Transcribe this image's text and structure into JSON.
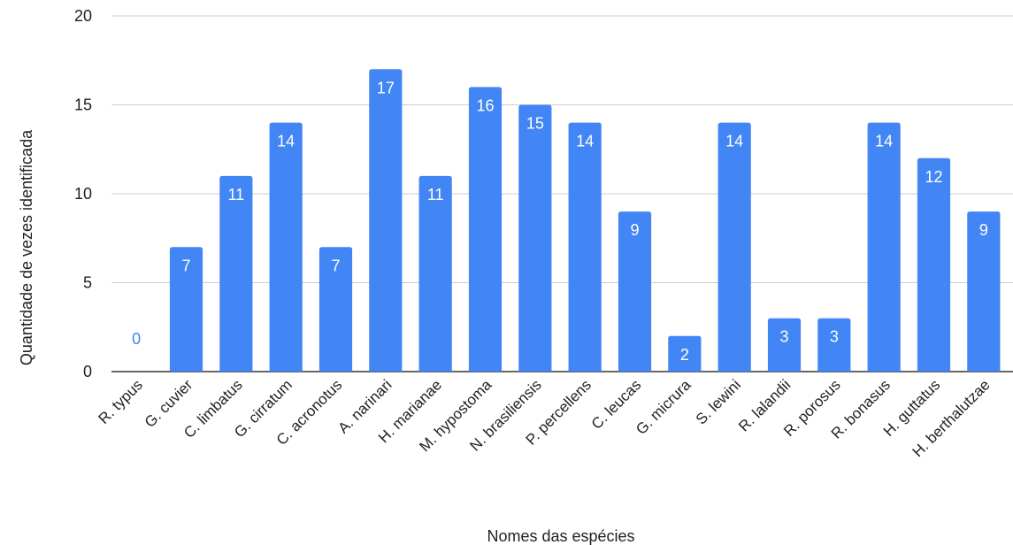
{
  "chart_data": {
    "type": "bar",
    "title": "",
    "xlabel": "Nomes das espécies",
    "ylabel": "Quantidade de vezes identificada",
    "ylim": [
      0,
      20
    ],
    "yticks": [
      0,
      5,
      10,
      15,
      20
    ],
    "grid": true,
    "legend": "none",
    "bar_color": "#4285f4",
    "categories": [
      "R. typus",
      "G. cuvier",
      "C. limbatus",
      "G. cirratum",
      "C. acronotus",
      "A. narinari",
      "H. marianae",
      "M. hypostoma",
      "N. brasiliensis",
      "P. percellens",
      "C. leucas",
      "G. micrura",
      "S. lewini",
      "R. lalandii",
      "R. porosus",
      "R. bonasus",
      "H. guttatus",
      "H. berthalutzae"
    ],
    "values": [
      0,
      7,
      11,
      14,
      7,
      17,
      11,
      16,
      15,
      14,
      9,
      2,
      14,
      3,
      3,
      14,
      12,
      9
    ]
  }
}
